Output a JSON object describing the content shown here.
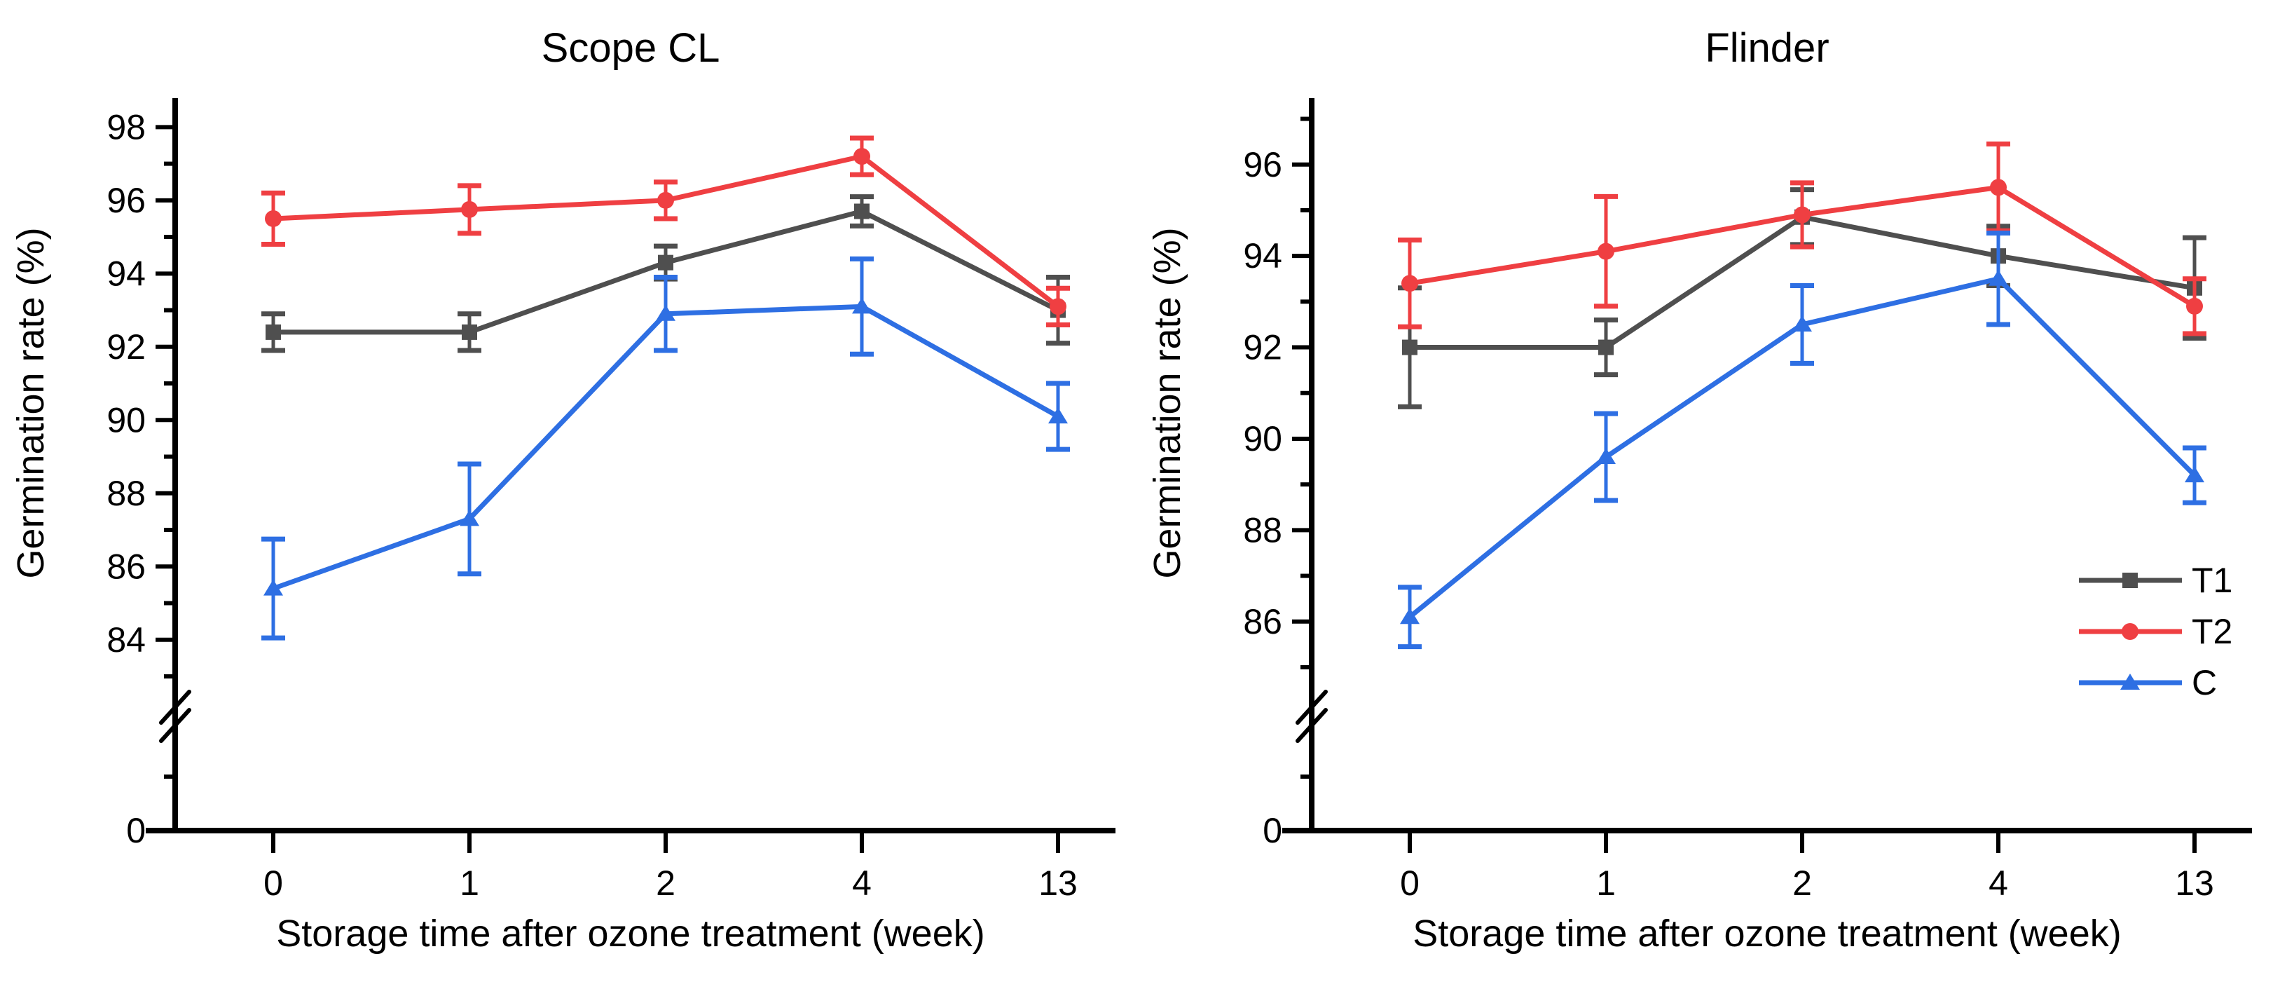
{
  "figure": {
    "background": "#ffffff",
    "axis_color": "#000000",
    "series_colors": {
      "T1": "#4F4F4F",
      "T2": "#EF3F42",
      "C": "#2E6FE3"
    }
  },
  "chart_data": [
    {
      "type": "line",
      "title": "Scope CL",
      "xlabel": "Storage time after ozone treatment (week)",
      "ylabel": "Germination rate (%)",
      "x_tick_labels": [
        "0",
        "1",
        "2",
        "4",
        "13"
      ],
      "y_major_ticks": [
        84,
        86,
        88,
        90,
        92,
        94,
        96,
        98
      ],
      "y_minor_ticks": [
        83,
        85,
        87,
        89,
        91,
        93,
        95,
        97
      ],
      "y_axis_break": true,
      "y_zero_label": "0",
      "y_range_upper_segment": [
        83.0,
        98.6
      ],
      "grid": false,
      "series": [
        {
          "name": "T1",
          "marker": "square",
          "color": "#4F4F4F",
          "values": [
            92.4,
            92.4,
            94.3,
            95.7,
            93.0
          ],
          "errors": [
            0.5,
            0.5,
            0.45,
            0.4,
            0.9
          ]
        },
        {
          "name": "T2",
          "marker": "circle",
          "color": "#EF3F42",
          "values": [
            95.5,
            95.75,
            96.0,
            97.2,
            93.1
          ],
          "errors": [
            0.7,
            0.65,
            0.5,
            0.5,
            0.5
          ]
        },
        {
          "name": "C",
          "marker": "triangle",
          "color": "#2E6FE3",
          "values": [
            85.4,
            87.3,
            92.9,
            93.1,
            90.1
          ],
          "errors": [
            1.35,
            1.5,
            1.0,
            1.3,
            0.9
          ]
        }
      ],
      "legend": {
        "show": false,
        "entries": []
      }
    },
    {
      "type": "line",
      "title": "Flinder",
      "xlabel": "Storage time after ozone treatment (week)",
      "ylabel": "Germination rate (%)",
      "x_tick_labels": [
        "0",
        "1",
        "2",
        "4",
        "13"
      ],
      "y_major_ticks": [
        86,
        88,
        90,
        92,
        94,
        96
      ],
      "y_minor_ticks": [
        85,
        87,
        89,
        91,
        93,
        95,
        97
      ],
      "y_axis_break": true,
      "y_zero_label": "0",
      "y_range_upper_segment": [
        84.8,
        97.3
      ],
      "grid": false,
      "series": [
        {
          "name": "T1",
          "marker": "square",
          "color": "#4F4F4F",
          "values": [
            92.0,
            92.0,
            94.85,
            94.0,
            93.3
          ],
          "errors": [
            1.3,
            0.6,
            0.6,
            0.65,
            1.1
          ]
        },
        {
          "name": "T2",
          "marker": "circle",
          "color": "#EF3F42",
          "values": [
            93.4,
            94.1,
            94.9,
            95.5,
            92.9
          ],
          "errors": [
            0.95,
            1.2,
            0.7,
            0.95,
            0.6
          ]
        },
        {
          "name": "C",
          "marker": "triangle",
          "color": "#2E6FE3",
          "values": [
            86.1,
            89.6,
            92.5,
            93.5,
            89.2
          ],
          "errors": [
            0.65,
            0.95,
            0.85,
            1.0,
            0.6
          ]
        }
      ],
      "legend": {
        "show": true,
        "entries": [
          "T1",
          "T2",
          "C"
        ],
        "position": "right-middle"
      }
    }
  ]
}
